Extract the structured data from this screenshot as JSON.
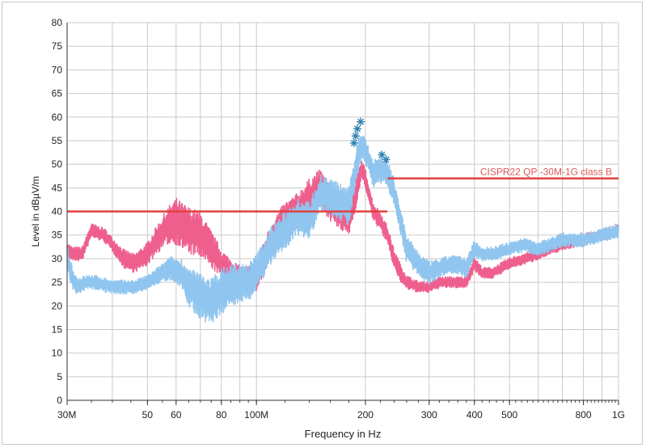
{
  "chart_data": {
    "type": "line",
    "xlabel": "Frequency in Hz",
    "ylabel": "Level in dBµV/m",
    "x_scale": "log",
    "xlim": [
      30,
      1000
    ],
    "ylim": [
      0,
      80
    ],
    "grid": true,
    "x_ticks": [
      {
        "value": 30,
        "label": "30M"
      },
      {
        "value": 50,
        "label": "50"
      },
      {
        "value": 60,
        "label": "60"
      },
      {
        "value": 80,
        "label": "80"
      },
      {
        "value": 100,
        "label": "100M"
      },
      {
        "value": 200,
        "label": "200"
      },
      {
        "value": 300,
        "label": "300"
      },
      {
        "value": 400,
        "label": "400"
      },
      {
        "value": 500,
        "label": "500"
      },
      {
        "value": 800,
        "label": "800"
      },
      {
        "value": 1000,
        "label": "1G"
      }
    ],
    "y_ticks": [
      0,
      5,
      10,
      15,
      20,
      25,
      30,
      35,
      40,
      45,
      50,
      55,
      60,
      65,
      70,
      75,
      80
    ],
    "limit_line": {
      "name": "CISPR22 QP -30M-1G class B",
      "color": "#e0403f",
      "segments": [
        {
          "x": [
            30,
            230
          ],
          "y": 40
        },
        {
          "x": [
            230,
            1000
          ],
          "y": 47
        }
      ]
    },
    "series": [
      {
        "color": "#ee5f8d",
        "x": [
          30,
          31,
          33,
          35,
          38,
          40,
          43,
          46,
          50,
          53,
          57,
          60,
          62,
          65,
          70,
          75,
          80,
          85,
          90,
          95,
          100,
          110,
          120,
          130,
          140,
          150,
          160,
          170,
          180,
          190,
          195,
          200,
          210,
          220,
          230,
          240,
          250,
          260,
          280,
          300,
          320,
          350,
          380,
          400,
          420,
          450,
          500,
          550,
          600,
          700,
          800,
          900,
          1000
        ],
        "y": [
          32,
          31,
          31,
          36,
          35,
          33,
          30,
          29,
          31,
          34,
          37,
          38,
          37,
          36,
          35,
          32,
          29,
          27,
          26,
          26,
          26,
          34,
          38,
          40,
          43,
          45,
          42,
          39,
          38,
          45,
          49,
          47,
          40,
          38,
          35,
          30,
          27,
          25,
          24,
          24,
          25,
          25,
          25,
          29,
          27,
          27,
          29,
          30,
          31,
          33,
          34,
          35,
          36
        ],
        "spread": [
          1.5,
          1.5,
          1.5,
          1.5,
          1.5,
          1.5,
          2,
          2,
          2.5,
          3,
          4,
          5,
          5,
          5,
          5,
          4,
          3,
          3,
          2.5,
          2.5,
          3,
          4,
          4,
          4,
          4,
          4,
          4,
          3,
          3,
          3,
          2,
          2,
          2,
          2,
          2,
          2,
          2,
          1.5,
          1.2,
          1.2,
          1.2,
          1.2,
          1.2,
          1.5,
          1.2,
          1.2,
          1.2,
          1.2,
          1.2,
          1.2,
          1.2,
          1.2,
          1.2
        ]
      },
      {
        "color": "#8fc5ee",
        "x": [
          30,
          31,
          32,
          34,
          36,
          40,
          43,
          46,
          50,
          55,
          58,
          62,
          65,
          70,
          75,
          80,
          85,
          90,
          95,
          100,
          110,
          120,
          130,
          140,
          150,
          160,
          170,
          180,
          190,
          195,
          200,
          210,
          220,
          230,
          240,
          250,
          260,
          280,
          300,
          320,
          350,
          380,
          400,
          420,
          450,
          500,
          550,
          600,
          700,
          800,
          900,
          1000
        ],
        "y": [
          30,
          26,
          24,
          25,
          25,
          24,
          24,
          24,
          25,
          27,
          28,
          27,
          24,
          22,
          21,
          23,
          24,
          25,
          25,
          27,
          33,
          36,
          39,
          38,
          44,
          43,
          42,
          41,
          51,
          54,
          53,
          48,
          49,
          48,
          44,
          38,
          32,
          29,
          27,
          28,
          29,
          28,
          32,
          31,
          31,
          32,
          33,
          32,
          34,
          34,
          35,
          36
        ],
        "spread": [
          3,
          2.5,
          2,
          1.5,
          1.5,
          1.5,
          1.5,
          1.5,
          1.5,
          2,
          2.5,
          3,
          4,
          5,
          5,
          5,
          5,
          4,
          4,
          4,
          4,
          4,
          4,
          4,
          4,
          4,
          4,
          4,
          4,
          3,
          3,
          3,
          3,
          3,
          3,
          3,
          3,
          2.5,
          2.5,
          2,
          2,
          2,
          2,
          1.5,
          1.5,
          1.5,
          1.5,
          1.5,
          1.5,
          1.5,
          1.5,
          1.5
        ]
      }
    ],
    "markers": [
      {
        "x": 186,
        "y": 54.5
      },
      {
        "x": 188,
        "y": 56
      },
      {
        "x": 190,
        "y": 57.5
      },
      {
        "x": 194,
        "y": 59
      },
      {
        "x": 222,
        "y": 52
      },
      {
        "x": 228,
        "y": 51
      }
    ],
    "marker_color": "#2f7fb0"
  }
}
